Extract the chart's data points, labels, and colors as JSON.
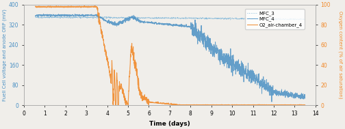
{
  "xlabel": "Time (days)",
  "ylabel_left": "Fuell Cell voltage and anode ORP (mV)",
  "ylabel_right": "Oxygen content (% of air saturation)",
  "xlim": [
    0,
    14
  ],
  "ylim_left": [
    0,
    400
  ],
  "ylim_right": [
    0,
    100
  ],
  "yticks_left": [
    0,
    80,
    160,
    240,
    320,
    400
  ],
  "yticks_right": [
    0,
    20,
    40,
    60,
    80,
    100
  ],
  "xticks": [
    0,
    1,
    2,
    3,
    4,
    5,
    6,
    7,
    8,
    9,
    10,
    11,
    12,
    13,
    14
  ],
  "legend_labels": [
    "MFC_3",
    "MFC_4",
    "O2_air-chamber_4"
  ],
  "color_mfc3": "#7ab4d8",
  "color_mfc4": "#4a90c4",
  "color_o2": "#f0892a",
  "background": "#f0eeea"
}
